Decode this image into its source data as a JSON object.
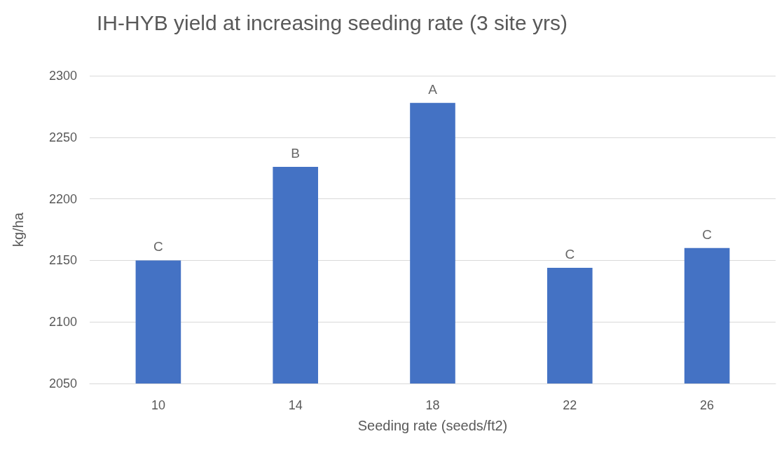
{
  "chart_data": {
    "type": "bar",
    "title": "IH-HYB yield at increasing seeding rate (3 site yrs)",
    "xlabel": "Seeding rate (seeds/ft2)",
    "ylabel": "kg/ha",
    "categories": [
      "10",
      "14",
      "18",
      "22",
      "26"
    ],
    "values": [
      2150,
      2226,
      2278,
      2144,
      2160
    ],
    "color": "#4472c4",
    "ylim": [
      2050,
      2300
    ],
    "yticks": [
      2050,
      2100,
      2150,
      2200,
      2250,
      2300
    ],
    "grid": "y",
    "annotations": [
      {
        "text": "C",
        "x": "10",
        "y": 2150
      },
      {
        "text": "B",
        "x": "14",
        "y": 2226
      },
      {
        "text": "A",
        "x": "18",
        "y": 2278
      },
      {
        "text": "C",
        "x": "22",
        "y": 2144
      },
      {
        "text": "C",
        "x": "26",
        "y": 2160
      }
    ]
  }
}
